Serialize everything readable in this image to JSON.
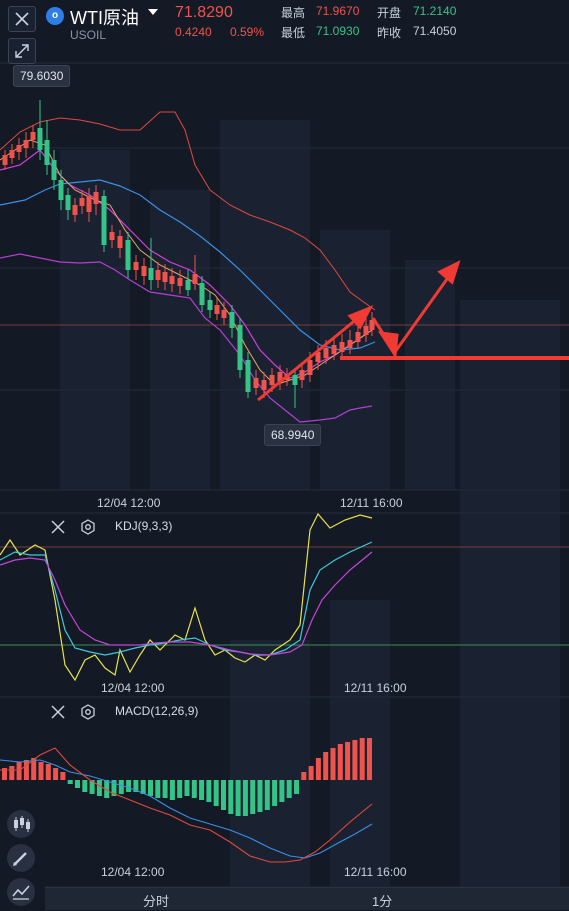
{
  "header": {
    "logo_glyph": "o",
    "title": "WTI原油",
    "symbol": "USOIL",
    "price": "71.8290",
    "change": "0.4240",
    "change_pct": "0.59%",
    "high_label": "最高",
    "high_value": "71.9670",
    "open_label": "开盘",
    "open_value": "71.2140",
    "low_label": "最低",
    "low_value": "71.0930",
    "prev_close_label": "昨收",
    "prev_close_value": "71.4050"
  },
  "main_chart": {
    "max_tag": "79.6030",
    "min_tag": "68.9940",
    "time_left": "12/04 12:00",
    "time_right": "12/11 16:00"
  },
  "kdj": {
    "label": "KDJ(9,3,3)",
    "time_left": "12/04 12:00",
    "time_right": "12/11 16:00"
  },
  "macd": {
    "label": "MACD(12,26,9)",
    "time_left": "12/04 12:00",
    "time_right": "12/11 16:00"
  },
  "tabs": [
    "分时",
    "1分"
  ],
  "icons": [
    "close-icon",
    "expand-icon",
    "close-icon",
    "gear-icon",
    "candlestick-icon",
    "pencil-icon",
    "line-chart-icon"
  ],
  "colors": {
    "up": "#f0534b",
    "down": "#35c487",
    "bg": "#131a26"
  }
}
